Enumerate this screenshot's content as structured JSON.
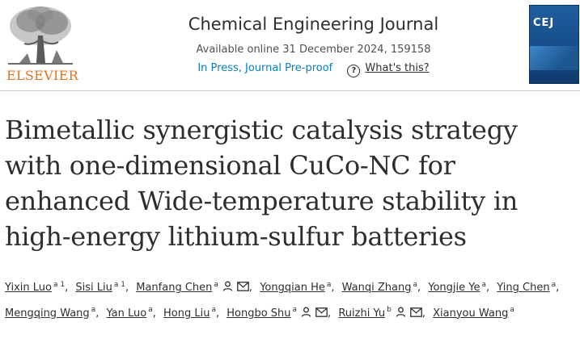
{
  "header": {
    "publisher": "ELSEVIER",
    "journal_title": "Chemical Engineering Journal",
    "available_online": "Available online 31 December 2024, 159158",
    "status": "In Press, Journal Pre-proof",
    "whats_this": "What's this?",
    "cover_label": "CEJ"
  },
  "article": {
    "title": "Bimetallic synergistic catalysis strategy with one-dimensional CuCo-NC for enhanced Wide-temperature stability in high-energy lithium-sulfur batteries"
  },
  "authors": [
    {
      "name": "Yixin Luo",
      "sup": "a 1",
      "person": false,
      "mail": false
    },
    {
      "name": "Sisi Liu",
      "sup": "a 1",
      "person": false,
      "mail": false
    },
    {
      "name": "Manfang Chen",
      "sup": "a",
      "person": true,
      "mail": true
    },
    {
      "name": "Yongqian He",
      "sup": "a",
      "person": false,
      "mail": false
    },
    {
      "name": "Wanqi Zhang",
      "sup": "a",
      "person": false,
      "mail": false
    },
    {
      "name": "Yongjie Ye",
      "sup": "a",
      "person": false,
      "mail": false
    },
    {
      "name": "Ying Chen",
      "sup": "a",
      "person": false,
      "mail": false
    },
    {
      "name": "Mengqing Wang",
      "sup": "a",
      "person": false,
      "mail": false
    },
    {
      "name": "Yan Luo",
      "sup": "a",
      "person": false,
      "mail": false
    },
    {
      "name": "Hong Liu",
      "sup": "a",
      "person": false,
      "mail": false
    },
    {
      "name": "Hongbo Shu",
      "sup": "a",
      "person": true,
      "mail": true
    },
    {
      "name": "Ruizhi Yu",
      "sup": "b",
      "person": true,
      "mail": true
    },
    {
      "name": "Xianyou Wang",
      "sup": "a",
      "person": false,
      "mail": false
    }
  ],
  "colors": {
    "publisher_orange": "#e9711c",
    "link_blue": "#0c7dbb",
    "text": "#2e2e2e",
    "cover_blue": "#164c89"
  }
}
